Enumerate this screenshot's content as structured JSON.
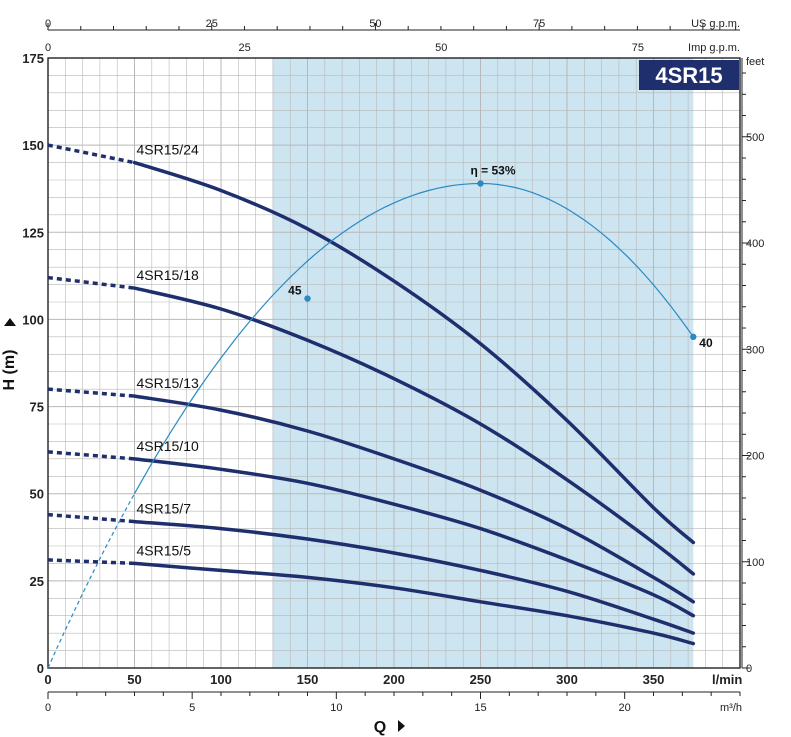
{
  "chart_data": {
    "type": "line",
    "title": "4SR15",
    "colors": {
      "curve": "#1f2f6e",
      "efficiency": "#2a8ac4",
      "band": "#cce5f1",
      "badge": "#1f2f6e",
      "grid": "#b8b8b8"
    },
    "x_axis": {
      "label": "Q",
      "unit": "l/min",
      "range": [
        0,
        400
      ],
      "ticks": [
        0,
        50,
        100,
        150,
        200,
        250,
        300,
        350
      ],
      "grid_step": 10
    },
    "x_axis_m3h": {
      "unit": "m³/h",
      "ticks": [
        0,
        5,
        10,
        15,
        20
      ]
    },
    "x_axis_us_gpm": {
      "unit": "US g.p.m.",
      "ticks": [
        0,
        25,
        50,
        75
      ]
    },
    "x_axis_imp_gpm": {
      "unit": "Imp g.p.m.",
      "ticks": [
        0,
        25,
        50,
        75
      ]
    },
    "y_axis": {
      "label": "H (m)",
      "range": [
        0,
        175
      ],
      "ticks": [
        0,
        25,
        50,
        75,
        100,
        125,
        150,
        175
      ],
      "grid_step": 5
    },
    "y_axis_right": {
      "unit": "feet",
      "ticks": [
        0,
        100,
        200,
        300,
        400,
        500
      ]
    },
    "recommended_range": [
      130,
      373
    ],
    "series": [
      {
        "name": "4SR15/24",
        "x": [
          0,
          50,
          100,
          150,
          200,
          250,
          300,
          350,
          373
        ],
        "y": [
          150,
          145,
          137,
          126,
          111,
          93,
          71,
          46,
          36
        ]
      },
      {
        "name": "4SR15/18",
        "x": [
          0,
          50,
          100,
          150,
          200,
          250,
          300,
          350,
          373
        ],
        "y": [
          112,
          109,
          103,
          94,
          83,
          70,
          54,
          36,
          27
        ]
      },
      {
        "name": "4SR15/13",
        "x": [
          0,
          50,
          100,
          150,
          200,
          250,
          300,
          350,
          373
        ],
        "y": [
          80,
          78,
          74,
          68,
          60,
          51,
          40,
          26,
          19
        ]
      },
      {
        "name": "4SR15/10",
        "x": [
          0,
          50,
          100,
          150,
          200,
          250,
          300,
          350,
          373
        ],
        "y": [
          62,
          60,
          57,
          53,
          47,
          40,
          31,
          21,
          15
        ]
      },
      {
        "name": "4SR15/7",
        "x": [
          0,
          50,
          100,
          150,
          200,
          250,
          300,
          350,
          373
        ],
        "y": [
          44,
          42,
          40,
          37,
          33,
          28,
          22,
          14,
          10
        ]
      },
      {
        "name": "4SR15/5",
        "x": [
          0,
          50,
          100,
          150,
          200,
          250,
          300,
          350,
          373
        ],
        "y": [
          31,
          30,
          28,
          26,
          23,
          19,
          15,
          10,
          7
        ]
      }
    ],
    "efficiency_curve": {
      "label_prefix": "η =",
      "peak_label": "53%",
      "points": [
        {
          "x": 150,
          "y": 106,
          "label": "45"
        },
        {
          "x": 250,
          "y": 139,
          "label": ""
        },
        {
          "x": 373,
          "y": 95,
          "label": "40"
        }
      ]
    }
  }
}
